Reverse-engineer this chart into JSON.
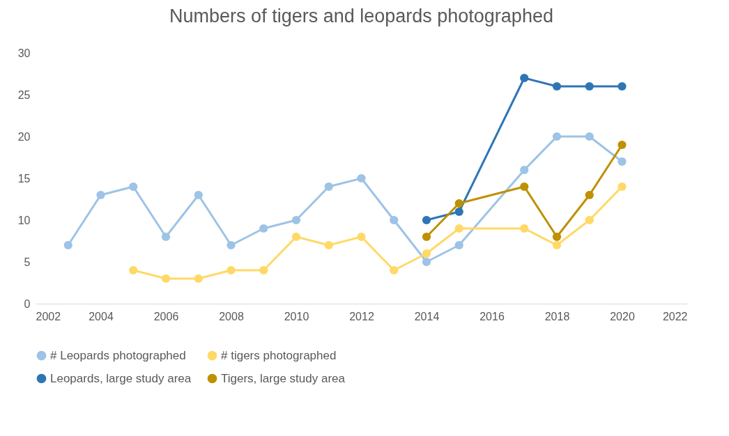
{
  "chart_data": {
    "type": "line",
    "title": "Numbers of tigers and leopards photographed",
    "xlim": [
      2002,
      2022
    ],
    "xticks": [
      2002,
      2004,
      2006,
      2008,
      2010,
      2012,
      2014,
      2016,
      2018,
      2020,
      2022
    ],
    "ylim": [
      0,
      30
    ],
    "yticks": [
      0,
      5,
      10,
      15,
      20,
      25,
      30
    ],
    "marker": "circle",
    "legend": "bottom",
    "series": [
      {
        "name": "# Leopards photographed",
        "color": "#9dc3e6",
        "x": [
          2003,
          2004,
          2005,
          2006,
          2007,
          2008,
          2009,
          2010,
          2011,
          2012,
          2013,
          2014,
          2015,
          2017,
          2018,
          2019,
          2020
        ],
        "values": [
          7,
          13,
          14,
          8,
          13,
          7,
          9,
          10,
          14,
          15,
          10,
          5,
          7,
          16,
          20,
          20,
          17
        ]
      },
      {
        "name": "# tigers photographed",
        "color": "#ffd966",
        "x": [
          2005,
          2006,
          2007,
          2008,
          2009,
          2010,
          2011,
          2012,
          2013,
          2014,
          2015,
          2017,
          2018,
          2019,
          2020
        ],
        "values": [
          4,
          3,
          3,
          4,
          4,
          8,
          7,
          8,
          4,
          6,
          9,
          9,
          7,
          10,
          14
        ]
      },
      {
        "name": "Leopards, large study area",
        "color": "#2e75b6",
        "x": [
          2014,
          2015,
          2017,
          2018,
          2019,
          2020
        ],
        "values": [
          10,
          11,
          27,
          26,
          26,
          26
        ]
      },
      {
        "name": "Tigers, large study area",
        "color": "#bf9000",
        "x": [
          2014,
          2015,
          2017,
          2018,
          2019,
          2020
        ],
        "values": [
          8,
          12,
          14,
          8,
          13,
          19
        ]
      }
    ]
  }
}
